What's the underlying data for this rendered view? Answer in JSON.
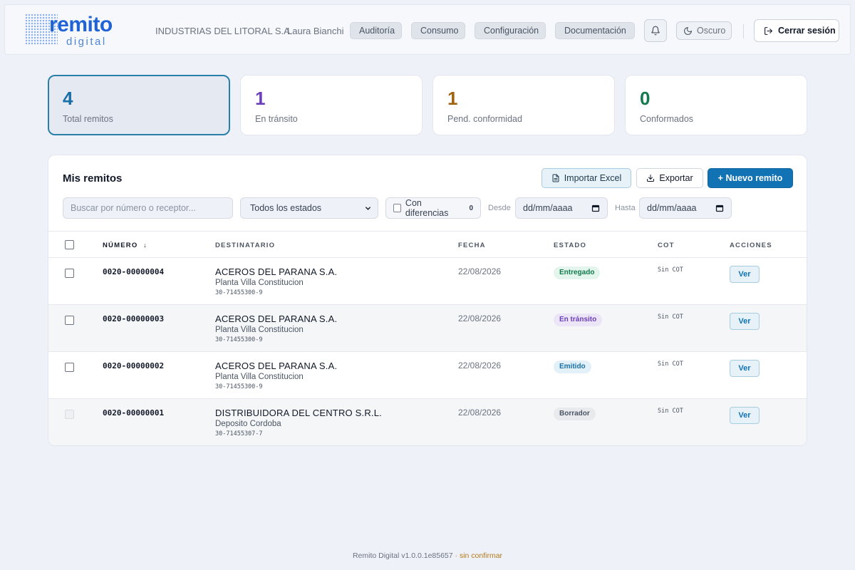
{
  "header": {
    "logo_word": "remito",
    "logo_sub": "digital",
    "company": "INDUSTRIAS DEL LITORAL S.A.",
    "user": "Laura Bianchi",
    "nav": [
      "Auditoría",
      "Consumo",
      "Configuración",
      "Documentación"
    ],
    "dark_mode_label": "Oscuro",
    "logout_label": "Cerrar sesión"
  },
  "stats": [
    {
      "value": "4",
      "label": "Total remitos",
      "color": "#1a6fa6"
    },
    {
      "value": "1",
      "label": "En tránsito",
      "color": "#6b3fb8"
    },
    {
      "value": "1",
      "label": "Pend. conformidad",
      "color": "#a06410"
    },
    {
      "value": "0",
      "label": "Conformados",
      "color": "#137a4e"
    }
  ],
  "panel": {
    "title": "Mis remitos",
    "import_label": "Importar Excel",
    "export_label": "Exportar",
    "new_label": "+ Nuevo remito"
  },
  "filters": {
    "search_placeholder": "Buscar por número o receptor...",
    "status_selected": "Todos los estados",
    "diff_label": "Con diferencias",
    "diff_count": "0",
    "from_label": "Desde",
    "to_label": "Hasta",
    "date_placeholder": "dd/mm/aaaa"
  },
  "table": {
    "columns": [
      "NÚMERO",
      "DESTINATARIO",
      "FECHA",
      "ESTADO",
      "COT",
      "ACCIONES"
    ],
    "sort_indicator": "↓",
    "action_label": "Ver",
    "rows": [
      {
        "numero": "0020-00000004",
        "name": "ACEROS DEL PARANA S.A.",
        "plant": "Planta Villa Constitucion",
        "cuit": "30-71455300-9",
        "fecha": "22/08/2026",
        "estado": "Entregado",
        "cot": "Sin COT",
        "badge_bg": "#e3f5ec",
        "badge_fg": "#137a4e",
        "selectable": true
      },
      {
        "numero": "0020-00000003",
        "name": "ACEROS DEL PARANA S.A.",
        "plant": "Planta Villa Constitucion",
        "cuit": "30-71455300-9",
        "fecha": "22/08/2026",
        "estado": "En tránsito",
        "cot": "Sin COT",
        "badge_bg": "#ece4f7",
        "badge_fg": "#6b3fb8",
        "selectable": true
      },
      {
        "numero": "0020-00000002",
        "name": "ACEROS DEL PARANA S.A.",
        "plant": "Planta Villa Constitucion",
        "cuit": "30-71455300-9",
        "fecha": "22/08/2026",
        "estado": "Emitido",
        "cot": "Sin COT",
        "badge_bg": "#e2f1f8",
        "badge_fg": "#1a6fa6",
        "selectable": true
      },
      {
        "numero": "0020-00000001",
        "name": "DISTRIBUIDORA DEL CENTRO S.R.L.",
        "plant": "Deposito Cordoba",
        "cuit": "30-71455307-7",
        "fecha": "22/08/2026",
        "estado": "Borrador",
        "cot": "Sin COT",
        "badge_bg": "#e8eaee",
        "badge_fg": "#4b5563",
        "selectable": false
      }
    ]
  },
  "footer": {
    "version": "Remito Digital v1.0.0.1e85657",
    "status": " · sin confirmar"
  },
  "icons": {
    "bell": "bell-icon",
    "moon": "moon-icon",
    "logout": "logout-icon",
    "excel": "spreadsheet-icon",
    "download": "download-icon",
    "calendar": "calendar-icon",
    "chevron": "chevron-down-icon"
  }
}
